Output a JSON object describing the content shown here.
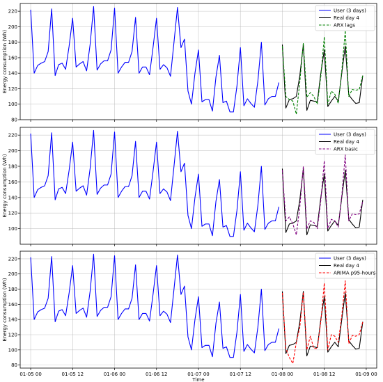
{
  "chart_data": [
    {
      "type": "line",
      "xlabel": "",
      "ylabel": "Energy consumption (Wh)",
      "ylim": [
        80,
        230
      ],
      "yticks": [
        80,
        100,
        120,
        140,
        160,
        180,
        200,
        220
      ],
      "xticks": [
        "01-05 00",
        "01-05 12",
        "01-06 00",
        "01-06 12",
        "01-07 00",
        "01-07 12",
        "01-08 00",
        "01-08 12",
        "01-09 00"
      ],
      "xlim_hours": [
        -3,
        99
      ],
      "grid": true,
      "legend_position": "top-right",
      "series": [
        {
          "name": "User (3 days)",
          "color": "#0000ff",
          "dash": "solid",
          "start_hour": 0,
          "values": [
            222,
            140,
            150,
            153,
            155,
            168,
            223,
            137,
            151,
            153,
            145,
            175,
            211,
            148,
            152,
            155,
            143,
            177,
            226,
            144,
            152,
            156,
            156,
            170,
            224,
            140,
            148,
            154,
            154,
            168,
            212,
            140,
            148,
            148,
            138,
            173,
            211,
            145,
            151,
            147,
            136,
            180,
            225,
            173,
            184,
            117,
            100,
            140,
            170,
            103,
            106,
            106,
            91,
            135,
            163,
            102,
            104,
            90,
            90,
            123,
            173,
            98,
            107,
            101,
            96,
            130,
            180,
            99,
            107,
            110,
            110,
            128
          ]
        },
        {
          "name": "Real day 4",
          "color": "#000000",
          "dash": "solid",
          "start_hour": 72,
          "values": [
            177,
            95,
            106,
            107,
            110,
            137,
            177,
            92,
            105,
            104,
            103,
            140,
            170,
            97,
            104,
            110,
            104,
            140,
            175,
            112,
            106,
            101,
            102,
            137
          ]
        },
        {
          "name": "ARX lags",
          "color": "#008000",
          "dash": "dashed",
          "start_hour": 72,
          "values": [
            175,
            110,
            106,
            104,
            87,
            129,
            179,
            109,
            115,
            110,
            100,
            136,
            187,
            100,
            117,
            113,
            101,
            143,
            195,
            110,
            119,
            118,
            119,
            137
          ]
        }
      ]
    },
    {
      "type": "line",
      "xlabel": "",
      "ylabel": "Energy consumption (Wh)",
      "ylim": [
        80,
        230
      ],
      "yticks": [
        100,
        120,
        140,
        160,
        180,
        200,
        220
      ],
      "xticks": [
        "01-05 00",
        "01-05 12",
        "01-06 00",
        "01-06 12",
        "01-07 00",
        "01-07 12",
        "01-08 00",
        "01-08 12",
        "01-09 00"
      ],
      "xlim_hours": [
        -3,
        99
      ],
      "grid": true,
      "legend_position": "top-right",
      "series": [
        {
          "name": "User (3 days)",
          "color": "#0000ff",
          "dash": "solid",
          "start_hour": 0,
          "values": [
            222,
            140,
            150,
            153,
            155,
            168,
            223,
            137,
            151,
            153,
            145,
            175,
            211,
            148,
            152,
            155,
            143,
            177,
            226,
            144,
            152,
            156,
            156,
            170,
            224,
            140,
            148,
            154,
            154,
            168,
            212,
            140,
            148,
            148,
            138,
            173,
            211,
            145,
            151,
            147,
            136,
            180,
            225,
            173,
            184,
            117,
            100,
            140,
            170,
            103,
            106,
            106,
            91,
            135,
            163,
            102,
            104,
            90,
            90,
            123,
            173,
            98,
            107,
            101,
            96,
            130,
            180,
            99,
            107,
            110,
            110,
            128
          ]
        },
        {
          "name": "Real day 4",
          "color": "#000000",
          "dash": "solid",
          "start_hour": 72,
          "values": [
            177,
            95,
            106,
            107,
            110,
            137,
            177,
            92,
            105,
            104,
            103,
            140,
            170,
            97,
            104,
            110,
            104,
            140,
            175,
            112,
            106,
            101,
            102,
            137
          ]
        },
        {
          "name": "ARX basic",
          "color": "#800080",
          "dash": "dashed",
          "start_hour": 72,
          "values": [
            175,
            110,
            115,
            106,
            92,
            128,
            180,
            100,
            110,
            108,
            100,
            136,
            187,
            100,
            112,
            110,
            102,
            142,
            195,
            110,
            119,
            118,
            119,
            135
          ]
        }
      ]
    },
    {
      "type": "line",
      "xlabel": "Time",
      "ylabel": "Energy consumption (Wh)",
      "ylim": [
        76,
        230
      ],
      "yticks": [
        80,
        100,
        120,
        140,
        160,
        180,
        200,
        220
      ],
      "xticks": [
        "01-05 00",
        "01-05 12",
        "01-06 00",
        "01-06 12",
        "01-07 00",
        "01-07 12",
        "01-08 00",
        "01-08 12",
        "01-09 00"
      ],
      "xlim_hours": [
        -3,
        99
      ],
      "grid": true,
      "legend_position": "top-right",
      "series": [
        {
          "name": "User (3 days)",
          "color": "#0000ff",
          "dash": "solid",
          "start_hour": 0,
          "values": [
            222,
            140,
            150,
            153,
            155,
            168,
            223,
            137,
            151,
            153,
            145,
            175,
            211,
            148,
            152,
            155,
            143,
            177,
            226,
            144,
            152,
            156,
            156,
            170,
            224,
            140,
            148,
            154,
            154,
            168,
            212,
            140,
            148,
            148,
            138,
            173,
            211,
            145,
            151,
            147,
            136,
            180,
            225,
            173,
            184,
            117,
            100,
            140,
            170,
            103,
            106,
            106,
            91,
            135,
            163,
            102,
            104,
            90,
            90,
            123,
            173,
            98,
            107,
            101,
            96,
            130,
            180,
            99,
            107,
            110,
            110,
            128
          ]
        },
        {
          "name": "Real day 4",
          "color": "#000000",
          "dash": "solid",
          "start_hour": 72,
          "values": [
            177,
            95,
            106,
            107,
            110,
            137,
            177,
            92,
            105,
            104,
            103,
            140,
            170,
            97,
            104,
            110,
            104,
            140,
            175,
            112,
            106,
            101,
            102,
            137
          ]
        },
        {
          "name": "ARIMA p95-hours",
          "color": "#ff0000",
          "dash": "dashed",
          "start_hour": 72,
          "values": [
            175,
            102,
            90,
            82,
            110,
            130,
            176,
            100,
            118,
            102,
            102,
            137,
            188,
            100,
            120,
            118,
            110,
            145,
            191,
            108,
            119,
            118,
            120,
            137
          ]
        }
      ]
    }
  ]
}
